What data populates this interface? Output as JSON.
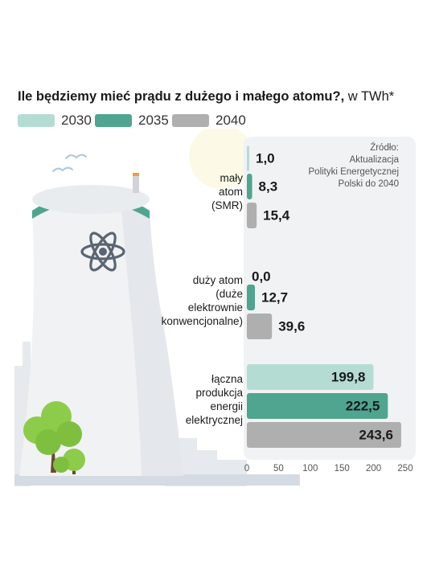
{
  "title": {
    "main": "Ile będziemy mieć prądu z dużego i małego atomu?,",
    "unit": " w TWh*"
  },
  "source": [
    "Źródło:",
    "Aktualizacja",
    "Polityki Energetycznej",
    "Polski do 2040"
  ],
  "colors": {
    "2030": "#b5dcd3",
    "2035": "#4fa58f",
    "2040": "#afafaf",
    "panel_background": "#f0f2f4",
    "building": "#f0f2f4",
    "building_rim": "#4fa58f"
  },
  "icons": [
    "atom-icon",
    "tree-icon",
    "bird-icon",
    "cooling-tower-icon"
  ],
  "chart_data": {
    "type": "bar",
    "orientation": "horizontal",
    "title": "Ile będziemy mieć prądu z dużego i małego atomu?, w TWh*",
    "legend_placement": "top",
    "groups": [
      {
        "label_lines": [
          "mały",
          "atom",
          "(SMR)"
        ]
      },
      {
        "label_lines": [
          "duży atom",
          "(duże",
          "elektrownie",
          "konwencjonalne)"
        ]
      },
      {
        "label_lines": [
          "łączna",
          "produkcja",
          "energii",
          "elektrycznej"
        ]
      }
    ],
    "series": [
      {
        "name": "2030",
        "values": [
          1.0,
          0.0,
          199.8
        ],
        "labels": [
          "1,0",
          "0,0",
          "199,8"
        ]
      },
      {
        "name": "2035",
        "values": [
          8.3,
          12.7,
          222.5
        ],
        "labels": [
          "8,3",
          "12,7",
          "222,5"
        ]
      },
      {
        "name": "2040",
        "values": [
          15.4,
          39.6,
          243.6
        ],
        "labels": [
          "15,4",
          "39,6",
          "243,6"
        ]
      }
    ],
    "x_ticks": [
      0,
      50,
      100,
      150,
      200,
      250
    ],
    "xlim": [
      0,
      250
    ],
    "grid": false
  }
}
